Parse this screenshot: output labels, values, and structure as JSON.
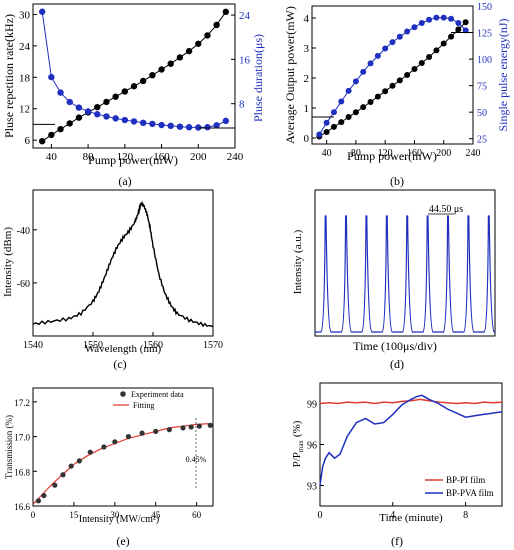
{
  "chart_data": [
    {
      "panel": "(a)",
      "type": "scatter",
      "xlabel": "Pump power(mW)",
      "ylabel": "Pluse repetition rate(kHz)",
      "y2label": "Pluse duration(μs)",
      "xlim": [
        20,
        240
      ],
      "ylim": [
        4.5,
        32
      ],
      "y2lim": [
        0,
        26
      ],
      "xticks": [
        40,
        80,
        120,
        160,
        200,
        240
      ],
      "yticks": [
        6,
        12,
        18,
        24,
        30
      ],
      "y2ticks": [
        8,
        16,
        24
      ],
      "series": [
        {
          "axis": "left",
          "color": "#000000",
          "x": [
            30,
            40,
            50,
            60,
            70,
            80,
            90,
            100,
            110,
            120,
            130,
            140,
            150,
            160,
            170,
            180,
            190,
            200,
            210,
            220,
            230
          ],
          "y": [
            5.8,
            7.0,
            8.1,
            9.2,
            10.3,
            11.3,
            12.3,
            13.3,
            14.3,
            15.3,
            16.3,
            17.3,
            18.4,
            19.5,
            20.6,
            21.8,
            23.0,
            24.4,
            26.0,
            28.0,
            30.5
          ]
        },
        {
          "axis": "right",
          "color": "#1f2fbf",
          "x": [
            30,
            40,
            50,
            60,
            70,
            80,
            90,
            100,
            110,
            120,
            130,
            140,
            150,
            160,
            170,
            180,
            190,
            200,
            210,
            220,
            230
          ],
          "y": [
            24.6,
            12.8,
            10.0,
            8.3,
            7.3,
            6.6,
            6.1,
            5.7,
            5.35,
            5.05,
            4.8,
            4.55,
            4.35,
            4.15,
            4.0,
            3.85,
            3.75,
            3.7,
            3.75,
            4.1,
            4.9
          ]
        }
      ],
      "arrow_left_y": 9.0,
      "arrow_right_y": 3.6
    },
    {
      "panel": "(b)",
      "type": "scatter",
      "xlabel": "Pump power(mW)",
      "ylabel": "Average Output power(mW)",
      "y2label": "Single pulse energy(nJ)",
      "xlim": [
        20,
        240
      ],
      "ylim": [
        -0.2,
        4.4
      ],
      "y2lim": [
        20,
        150
      ],
      "xticks": [
        40,
        80,
        120,
        160,
        200,
        240
      ],
      "yticks": [
        0,
        1,
        2,
        3,
        4
      ],
      "y2ticks": [
        25,
        50,
        75,
        100,
        125,
        150
      ],
      "series": [
        {
          "axis": "left",
          "color": "#000000",
          "x": [
            30,
            40,
            50,
            60,
            70,
            80,
            90,
            100,
            110,
            120,
            130,
            140,
            150,
            160,
            170,
            180,
            190,
            200,
            210,
            220,
            230
          ],
          "y": [
            0.05,
            0.2,
            0.37,
            0.53,
            0.7,
            0.86,
            1.03,
            1.2,
            1.38,
            1.56,
            1.74,
            1.92,
            2.1,
            2.3,
            2.5,
            2.7,
            2.92,
            3.15,
            3.38,
            3.62,
            3.86
          ]
        },
        {
          "axis": "right",
          "color": "#1f2fbf",
          "x": [
            30,
            40,
            50,
            60,
            70,
            80,
            90,
            100,
            110,
            120,
            130,
            140,
            150,
            160,
            170,
            180,
            190,
            200,
            210,
            220,
            230
          ],
          "y": [
            29,
            40,
            50,
            60,
            70,
            79,
            88,
            96,
            103,
            110,
            116,
            121,
            126,
            130,
            134,
            137,
            139,
            139,
            138,
            134,
            127
          ]
        }
      ],
      "arrow_left_y": 0.7,
      "arrow_right_y": 125
    },
    {
      "panel": "(c)",
      "type": "line",
      "xlabel": "Wavelength (nm)",
      "ylabel": "Intensity (dBm)",
      "xlim": [
        1540,
        1570
      ],
      "ylim": [
        -80,
        -25
      ],
      "xticks": [
        1540,
        1550,
        1560,
        1570
      ],
      "yticks": [
        -40,
        -60
      ],
      "color": "#000000",
      "x": [
        1540,
        1543,
        1546,
        1548,
        1550,
        1551,
        1552,
        1553,
        1554,
        1555,
        1556,
        1557,
        1557.5,
        1558,
        1558.5,
        1559,
        1559.5,
        1560,
        1561,
        1562,
        1563,
        1564,
        1566,
        1568,
        1570
      ],
      "y": [
        -75.5,
        -74.5,
        -73.5,
        -71.5,
        -67,
        -63,
        -57.5,
        -51.5,
        -46.5,
        -43,
        -40.5,
        -37,
        -34,
        -30,
        -31,
        -34,
        -39,
        -46,
        -57,
        -64,
        -68.5,
        -71.5,
        -74,
        -75.5,
        -76.5
      ]
    },
    {
      "panel": "(d)",
      "type": "line",
      "xlabel": "Time (100μs/div)",
      "ylabel": "Intensity (a.u.)",
      "annotation": "44.50 μs",
      "color": "#1f2fbf",
      "pulse_count": 9
    },
    {
      "panel": "(e)",
      "type": "scatter",
      "xlabel": "Intensity (MW/cm²)",
      "ylabel": "Transmission (%)",
      "xlim": [
        0,
        66
      ],
      "ylim": [
        16.6,
        17.28
      ],
      "xticks": [
        0,
        15,
        30,
        45,
        60
      ],
      "yticks": [
        16.6,
        16.8,
        17.0,
        17.2
      ],
      "legend": [
        "Experiment data",
        "Fitting"
      ],
      "annotation": "0.45%",
      "series": [
        {
          "name": "Experiment data",
          "color": "#000000",
          "x": [
            2,
            4,
            8,
            11,
            14,
            17,
            21,
            26,
            30,
            35,
            40,
            45,
            50,
            55,
            58,
            61,
            65
          ],
          "y": [
            16.63,
            16.66,
            16.72,
            16.78,
            16.83,
            16.86,
            16.91,
            16.94,
            16.97,
            17.0,
            17.02,
            17.03,
            17.04,
            17.05,
            17.055,
            17.06,
            17.065
          ]
        },
        {
          "name": "Fitting",
          "color": "#e03a2f",
          "x": [
            0,
            3,
            6,
            10,
            15,
            20,
            25,
            30,
            35,
            40,
            45,
            50,
            55,
            60,
            65
          ],
          "y": [
            16.61,
            16.66,
            16.71,
            16.77,
            16.84,
            16.89,
            16.93,
            16.96,
            16.99,
            17.01,
            17.03,
            17.05,
            17.06,
            17.07,
            17.075
          ]
        }
      ]
    },
    {
      "panel": "(f)",
      "type": "line",
      "xlabel": "Time (minute)",
      "ylabel": "P/P",
      "ylabel_sub": "max",
      "ylabel_unit": "(%)",
      "xlim": [
        0,
        10
      ],
      "ylim": [
        91.5,
        100.5
      ],
      "xticks": [
        0,
        4,
        8
      ],
      "yticks": [
        93,
        96,
        99
      ],
      "legend": [
        "BP-PI film",
        "BP-PVA film"
      ],
      "series": [
        {
          "name": "BP-PI film",
          "color": "#e03a2f",
          "x": [
            0,
            0.5,
            1,
            1.5,
            2,
            2.5,
            3,
            3.5,
            4,
            4.5,
            5,
            5.5,
            6,
            6.5,
            7,
            7.5,
            8,
            8.5,
            9,
            9.5,
            10
          ],
          "y": [
            99.0,
            99.05,
            99.0,
            99.1,
            99.05,
            99.1,
            99.0,
            99.1,
            99.05,
            99.15,
            99.2,
            99.3,
            99.2,
            99.1,
            99.05,
            99.0,
            99.05,
            99.0,
            99.1,
            99.05,
            99.1
          ]
        },
        {
          "name": "BP-PVA film",
          "color": "#1f2fbf",
          "x": [
            0,
            0.15,
            0.3,
            0.5,
            0.8,
            1.1,
            1.5,
            2,
            2.5,
            3,
            3.5,
            4,
            4.5,
            5,
            5.3,
            5.6,
            6,
            6.5,
            7,
            7.5,
            8,
            8.5,
            9,
            9.5,
            10
          ],
          "y": [
            93.0,
            94.4,
            95.0,
            95.4,
            95.0,
            95.3,
            96.6,
            97.6,
            97.9,
            97.5,
            97.6,
            98.2,
            98.9,
            99.3,
            99.5,
            99.6,
            99.3,
            99.0,
            98.6,
            98.3,
            98.0,
            98.1,
            98.2,
            98.3,
            98.4
          ]
        }
      ]
    }
  ]
}
